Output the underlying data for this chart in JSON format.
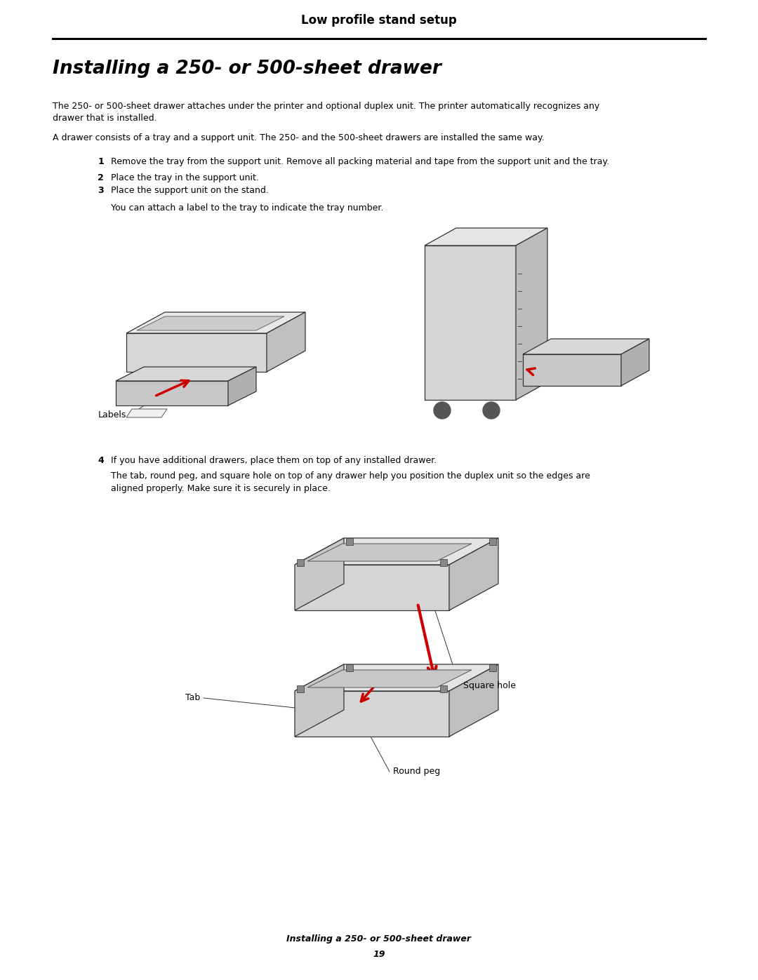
{
  "bg_color": "#ffffff",
  "header_title": "Low profile stand setup",
  "header_line_color": "#000000",
  "section_title": "Installing a 250- or 500-sheet drawer",
  "para1_line1": "The 250- or 500-sheet drawer attaches under the printer and optional duplex unit. The printer automatically recognizes any",
  "para1_line2": "drawer that is installed.",
  "para2": "A drawer consists of a tray and a support unit. The 250- and the 500-sheet drawers are installed the same way.",
  "step1_num": "1",
  "step1_text": "Remove the tray from the support unit. Remove all packing material and tape from the support unit and the tray.",
  "step2_num": "2",
  "step2_text": "Place the tray in the support unit.",
  "step3_num": "3",
  "step3_text": "Place the support unit on the stand.",
  "sub_note": "You can attach a label to the tray to indicate the tray number.",
  "step4_num": "4",
  "step4_text": "If you have additional drawers, place them on top of any installed drawer.",
  "step4_para_line1": "The tab, round peg, and square hole on top of any drawer help you position the duplex unit so the edges are",
  "step4_para_line2": "aligned properly. Make sure it is securely in place.",
  "labels_caption": "Labels",
  "tab_caption": "Tab",
  "square_hole_caption": "Square hole",
  "round_peg_caption": "Round peg",
  "footer_italic": "Installing a 250- or 500-sheet drawer",
  "footer_page": "19",
  "text_color": "#000000",
  "red_color": "#cc0000",
  "gray_light": "#e8e8e8",
  "gray_mid": "#cccccc",
  "gray_dark": "#aaaaaa",
  "gray_darker": "#888888",
  "edge_color": "#444444"
}
